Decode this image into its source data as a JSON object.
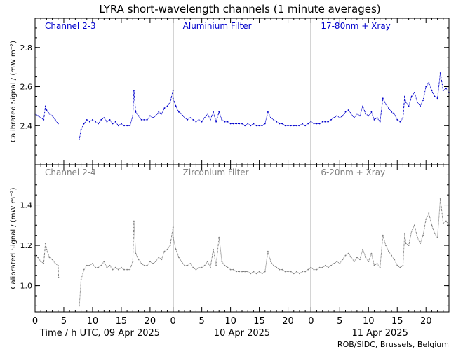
{
  "chart_data": {
    "type": "scatter",
    "title": "LYRA short-wavelength channels (1 minute averages)",
    "ylabel": "Calibrated Signal / (mW m⁻²)",
    "xlabel_days": [
      "Time / h UTC, 09 Apr 2025",
      "10 Apr 2025",
      "11 Apr 2025"
    ],
    "x_ticks": [
      0,
      5,
      10,
      15,
      20
    ],
    "credit": "ROB/SIDC, Brussels, Belgium",
    "colors": {
      "top": "#0000cc",
      "bottom": "#808080",
      "axis": "#000000"
    },
    "grid": false,
    "rows": [
      {
        "channel": "Channel 2-3",
        "ylim": [
          2.2,
          2.95
        ],
        "y_ticks": [
          2.4,
          2.6,
          2.8
        ],
        "color": "#0000cc",
        "panels": [
          {
            "name": "Channel 2-3",
            "x": [
              0,
              0.5,
              1,
              1.5,
              1.8,
              2,
              2.5,
              3,
              3.5,
              4,
              7.7,
              8,
              8.5,
              9,
              9.5,
              10,
              10.5,
              11,
              11.5,
              12,
              12.5,
              13,
              13.5,
              14,
              14.5,
              15,
              15.5,
              16,
              16.5,
              17,
              17.2,
              17.5,
              18,
              18.5,
              19,
              19.5,
              20,
              20.5,
              21,
              21.5,
              22,
              22.5,
              23,
              23.5,
              24
            ],
            "y": [
              2.46,
              2.45,
              2.44,
              2.43,
              2.5,
              2.48,
              2.46,
              2.45,
              2.43,
              2.41,
              2.33,
              2.38,
              2.41,
              2.43,
              2.42,
              2.43,
              2.42,
              2.41,
              2.43,
              2.44,
              2.42,
              2.43,
              2.41,
              2.42,
              2.4,
              2.41,
              2.4,
              2.4,
              2.4,
              2.45,
              2.58,
              2.47,
              2.45,
              2.43,
              2.43,
              2.43,
              2.45,
              2.44,
              2.45,
              2.47,
              2.46,
              2.49,
              2.5,
              2.52,
              2.58
            ]
          },
          {
            "name": "Aluminium Filter",
            "x": [
              0,
              0.5,
              1,
              1.5,
              2,
              2.5,
              3,
              3.5,
              4,
              4.5,
              5,
              5.5,
              6,
              6.5,
              7,
              7.5,
              8,
              8.5,
              9,
              9.5,
              10,
              10.5,
              11,
              11.5,
              12,
              12.5,
              13,
              13.5,
              14,
              14.5,
              15,
              15.5,
              16,
              16.5,
              17,
              17.5,
              18,
              18.5,
              19,
              19.5,
              20,
              20.5,
              21,
              21.5,
              22,
              22.5,
              23,
              23.5,
              24
            ],
            "y": [
              2.54,
              2.5,
              2.47,
              2.46,
              2.44,
              2.43,
              2.44,
              2.43,
              2.42,
              2.43,
              2.42,
              2.44,
              2.46,
              2.43,
              2.47,
              2.42,
              2.47,
              2.43,
              2.42,
              2.42,
              2.41,
              2.41,
              2.41,
              2.41,
              2.41,
              2.4,
              2.41,
              2.4,
              2.41,
              2.4,
              2.4,
              2.4,
              2.41,
              2.47,
              2.44,
              2.43,
              2.42,
              2.41,
              2.41,
              2.4,
              2.4,
              2.4,
              2.4,
              2.4,
              2.4,
              2.41,
              2.4,
              2.41,
              2.42
            ]
          },
          {
            "name": "17-80nm + Xray",
            "x": [
              0,
              0.5,
              1,
              1.5,
              2,
              2.5,
              3,
              3.5,
              4,
              4.5,
              5,
              5.5,
              6,
              6.5,
              7,
              7.5,
              8,
              8.5,
              9,
              9.5,
              10,
              10.5,
              11,
              11.5,
              12,
              12.5,
              13,
              13.5,
              14,
              14.5,
              15,
              15.5,
              16,
              16.3,
              16.5,
              17,
              17.5,
              18,
              18.5,
              19,
              19.5,
              20,
              20.5,
              21,
              21.5,
              22,
              22.5,
              23,
              23.5,
              24
            ],
            "y": [
              2.42,
              2.41,
              2.41,
              2.41,
              2.42,
              2.42,
              2.42,
              2.43,
              2.44,
              2.45,
              2.44,
              2.45,
              2.47,
              2.48,
              2.46,
              2.44,
              2.46,
              2.45,
              2.5,
              2.46,
              2.45,
              2.47,
              2.43,
              2.44,
              2.42,
              2.54,
              2.51,
              2.49,
              2.47,
              2.46,
              2.43,
              2.42,
              2.44,
              2.55,
              2.52,
              2.5,
              2.55,
              2.57,
              2.52,
              2.5,
              2.53,
              2.6,
              2.62,
              2.58,
              2.55,
              2.54,
              2.67,
              2.58,
              2.59,
              2.57
            ]
          }
        ]
      },
      {
        "channel": "Channel 2-4",
        "ylim": [
          0.87,
          1.6
        ],
        "y_ticks": [
          1.0,
          1.2,
          1.4
        ],
        "color": "#808080",
        "panels": [
          {
            "name": "Channel 2-4",
            "x": [
              0,
              0.5,
              1,
              1.5,
              1.8,
              2,
              2.5,
              3,
              3.5,
              4,
              4.1,
              7.7,
              8,
              8.5,
              9,
              9.5,
              10,
              10.5,
              11,
              11.5,
              12,
              12.5,
              13,
              13.5,
              14,
              14.5,
              15,
              15.5,
              16,
              16.5,
              17,
              17.2,
              17.5,
              18,
              18.5,
              19,
              19.5,
              20,
              20.5,
              21,
              21.5,
              22,
              22.5,
              23,
              23.5,
              24
            ],
            "y": [
              1.15,
              1.14,
              1.12,
              1.11,
              1.21,
              1.18,
              1.14,
              1.13,
              1.11,
              1.1,
              1.04,
              0.9,
              1.03,
              1.08,
              1.1,
              1.1,
              1.11,
              1.09,
              1.09,
              1.1,
              1.12,
              1.09,
              1.1,
              1.08,
              1.09,
              1.08,
              1.09,
              1.08,
              1.08,
              1.08,
              1.12,
              1.32,
              1.16,
              1.13,
              1.11,
              1.1,
              1.1,
              1.12,
              1.11,
              1.12,
              1.14,
              1.13,
              1.17,
              1.18,
              1.2,
              1.29
            ]
          },
          {
            "name": "Zirconium Filter",
            "x": [
              0,
              0.5,
              1,
              1.5,
              2,
              2.5,
              3,
              3.5,
              4,
              4.5,
              5,
              5.5,
              6,
              6.5,
              7,
              7.5,
              8,
              8.5,
              9,
              9.5,
              10,
              10.5,
              11,
              11.5,
              12,
              12.5,
              13,
              13.5,
              14,
              14.5,
              15,
              15.5,
              16,
              16.5,
              17,
              17.5,
              18,
              18.5,
              19,
              19.5,
              20,
              20.5,
              21,
              21.5,
              22,
              22.5,
              23,
              23.5,
              24
            ],
            "y": [
              1.24,
              1.18,
              1.14,
              1.12,
              1.1,
              1.1,
              1.11,
              1.09,
              1.08,
              1.09,
              1.09,
              1.1,
              1.12,
              1.09,
              1.18,
              1.1,
              1.24,
              1.12,
              1.1,
              1.09,
              1.08,
              1.08,
              1.07,
              1.07,
              1.07,
              1.07,
              1.07,
              1.06,
              1.07,
              1.06,
              1.07,
              1.06,
              1.07,
              1.17,
              1.12,
              1.1,
              1.09,
              1.08,
              1.08,
              1.07,
              1.07,
              1.07,
              1.06,
              1.07,
              1.06,
              1.07,
              1.07,
              1.08,
              1.09
            ]
          },
          {
            "name": "6-20nm + Xray",
            "x": [
              0,
              0.5,
              1,
              1.5,
              2,
              2.5,
              3,
              3.5,
              4,
              4.5,
              5,
              5.5,
              6,
              6.5,
              7,
              7.5,
              8,
              8.5,
              9,
              9.5,
              10,
              10.5,
              11,
              11.5,
              12,
              12.5,
              13,
              13.5,
              14,
              14.5,
              15,
              15.5,
              16,
              16.3,
              16.5,
              17,
              17.5,
              18,
              18.5,
              19,
              19.5,
              20,
              20.5,
              21,
              21.5,
              22,
              22.5,
              23,
              23.5,
              24
            ],
            "y": [
              1.09,
              1.08,
              1.08,
              1.09,
              1.09,
              1.1,
              1.09,
              1.1,
              1.11,
              1.12,
              1.11,
              1.13,
              1.15,
              1.16,
              1.14,
              1.12,
              1.14,
              1.13,
              1.18,
              1.14,
              1.12,
              1.16,
              1.1,
              1.11,
              1.09,
              1.25,
              1.2,
              1.17,
              1.15,
              1.13,
              1.1,
              1.09,
              1.1,
              1.26,
              1.21,
              1.2,
              1.27,
              1.3,
              1.24,
              1.21,
              1.25,
              1.33,
              1.36,
              1.3,
              1.26,
              1.24,
              1.43,
              1.31,
              1.32,
              1.3
            ]
          }
        ]
      }
    ]
  }
}
